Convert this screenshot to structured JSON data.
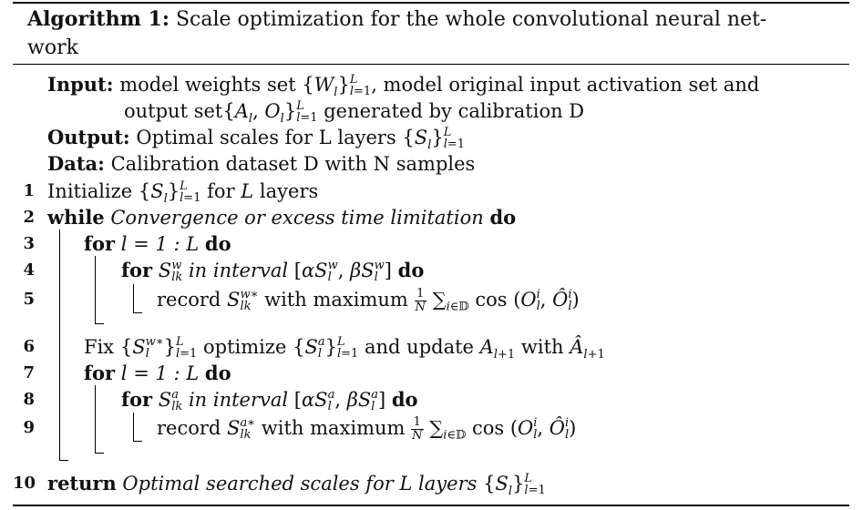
{
  "algorithm": {
    "label": "Algorithm 1:",
    "title_line1": "Scale optimization for the whole convolutional neural net-",
    "title_line2": "work"
  },
  "header": {
    "input_label": "Input:",
    "input_text1": "model weights set",
    "input_text2": ", model original input activation set and",
    "input_text3": "output set",
    "input_text4": "generated by calibration D",
    "output_label": "Output:",
    "output_text": "Optimal scales for L layers",
    "data_label": "Data:",
    "data_text": "Calibration dataset D with N samples"
  },
  "steps": [
    {
      "num": "1",
      "text": "Initialize"
    },
    {
      "num": "2",
      "kw": "while",
      "cond": "Convergence or excess time limitation",
      "kw2": "do"
    },
    {
      "num": "3",
      "kw": "for",
      "expr": "l = 1 : L",
      "kw2": "do"
    },
    {
      "num": "4",
      "kw": "for",
      "mid": "in interval",
      "kw2": "do"
    },
    {
      "num": "5",
      "text1": "record",
      "text2": "with maximum"
    },
    {
      "num": "6",
      "text1": "Fix",
      "text2": "optimize",
      "text3": "and update",
      "text4": "with"
    },
    {
      "num": "7",
      "kw": "for",
      "expr": "l = 1 : L",
      "kw2": "do"
    },
    {
      "num": "8",
      "kw": "for",
      "mid": "in interval",
      "kw2": "do"
    },
    {
      "num": "9",
      "text1": "record",
      "text2": "with maximum"
    },
    {
      "num": "10",
      "kw": "return",
      "text": "Optimal searched scales for L layers"
    }
  ]
}
